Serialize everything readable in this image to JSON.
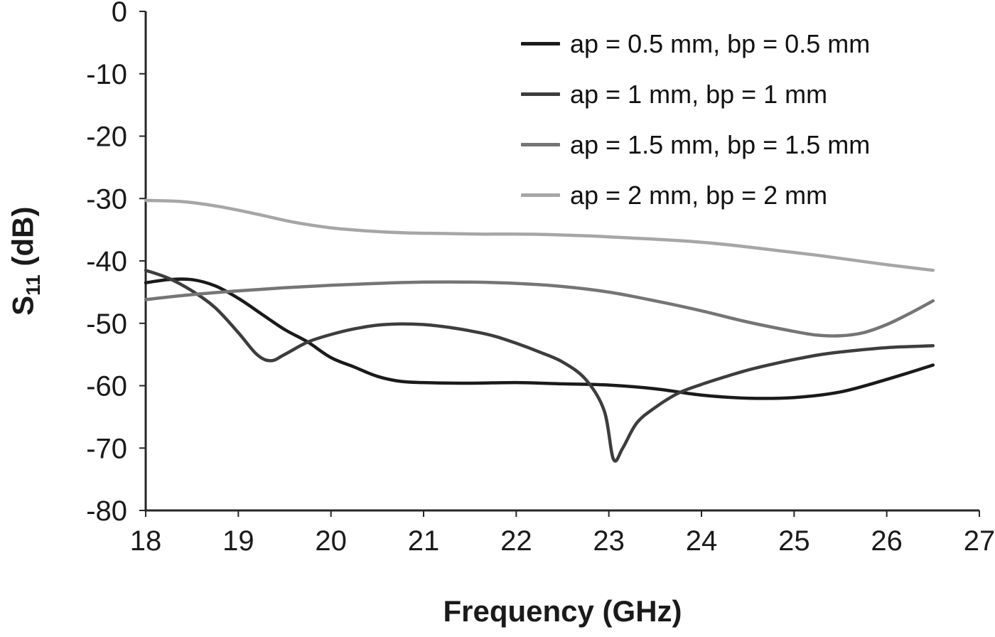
{
  "chart_data": {
    "type": "line",
    "title": "",
    "xlabel": "Frequency (GHz)",
    "ylabel": "S11 (dB)",
    "ylabel_parts": {
      "base": "S",
      "sub": "11",
      "unit": "(dB)"
    },
    "xlim": [
      18,
      27
    ],
    "ylim": [
      -80,
      0
    ],
    "x_ticks": [
      18,
      19,
      20,
      21,
      22,
      23,
      24,
      25,
      26,
      27
    ],
    "y_ticks": [
      0,
      -10,
      -20,
      -30,
      -40,
      -50,
      -60,
      -70,
      -80
    ],
    "grid": false,
    "legend_position": "top-right-inside",
    "axis_color": "#262626",
    "tick_label_color": "#1a1a1a",
    "series": [
      {
        "name": "ap = 0.5 mm, bp = 0.5 mm",
        "color": "#1a1a1a",
        "points": [
          [
            18.0,
            -43.5
          ],
          [
            18.25,
            -43.0
          ],
          [
            18.5,
            -43.0
          ],
          [
            18.75,
            -44.0
          ],
          [
            19.0,
            -46.0
          ],
          [
            19.25,
            -48.5
          ],
          [
            19.5,
            -51.0
          ],
          [
            19.75,
            -53.0
          ],
          [
            20.0,
            -55.5
          ],
          [
            20.25,
            -57.0
          ],
          [
            20.5,
            -58.5
          ],
          [
            20.75,
            -59.3
          ],
          [
            21.0,
            -59.5
          ],
          [
            21.5,
            -59.6
          ],
          [
            22.0,
            -59.5
          ],
          [
            22.5,
            -59.7
          ],
          [
            23.0,
            -59.9
          ],
          [
            23.5,
            -60.5
          ],
          [
            24.0,
            -61.5
          ],
          [
            24.5,
            -62.0
          ],
          [
            25.0,
            -61.9
          ],
          [
            25.5,
            -61.0
          ],
          [
            26.0,
            -59.0
          ],
          [
            26.5,
            -56.7
          ]
        ]
      },
      {
        "name": "ap = 1 mm, bp = 1 mm",
        "color": "#3d3d3d",
        "points": [
          [
            18.0,
            -41.5
          ],
          [
            18.25,
            -42.8
          ],
          [
            18.5,
            -44.8
          ],
          [
            18.75,
            -47.5
          ],
          [
            19.0,
            -51.5
          ],
          [
            19.2,
            -55.0
          ],
          [
            19.35,
            -56.0
          ],
          [
            19.5,
            -55.0
          ],
          [
            19.75,
            -53.0
          ],
          [
            20.0,
            -51.8
          ],
          [
            20.25,
            -50.9
          ],
          [
            20.5,
            -50.3
          ],
          [
            20.75,
            -50.1
          ],
          [
            21.0,
            -50.2
          ],
          [
            21.25,
            -50.6
          ],
          [
            21.5,
            -51.2
          ],
          [
            21.75,
            -52.0
          ],
          [
            22.0,
            -53.2
          ],
          [
            22.25,
            -54.6
          ],
          [
            22.5,
            -56.2
          ],
          [
            22.75,
            -59.0
          ],
          [
            22.95,
            -64.0
          ],
          [
            23.05,
            -71.8
          ],
          [
            23.15,
            -70.0
          ],
          [
            23.3,
            -66.0
          ],
          [
            23.5,
            -63.5
          ],
          [
            23.75,
            -61.2
          ],
          [
            24.0,
            -59.8
          ],
          [
            24.25,
            -58.6
          ],
          [
            24.5,
            -57.5
          ],
          [
            24.75,
            -56.6
          ],
          [
            25.0,
            -55.8
          ],
          [
            25.25,
            -55.1
          ],
          [
            25.5,
            -54.6
          ],
          [
            26.0,
            -53.9
          ],
          [
            26.5,
            -53.6
          ]
        ]
      },
      {
        "name": "ap = 1.5 mm, bp = 1.5 mm",
        "color": "#757575",
        "points": [
          [
            18.0,
            -46.2
          ],
          [
            18.5,
            -45.4
          ],
          [
            19.0,
            -44.8
          ],
          [
            19.5,
            -44.3
          ],
          [
            20.0,
            -43.9
          ],
          [
            20.5,
            -43.6
          ],
          [
            21.0,
            -43.4
          ],
          [
            21.5,
            -43.4
          ],
          [
            22.0,
            -43.6
          ],
          [
            22.5,
            -44.1
          ],
          [
            23.0,
            -45.0
          ],
          [
            23.5,
            -46.4
          ],
          [
            24.0,
            -48.0
          ],
          [
            24.5,
            -49.8
          ],
          [
            25.0,
            -51.3
          ],
          [
            25.25,
            -51.9
          ],
          [
            25.5,
            -52.0
          ],
          [
            25.75,
            -51.5
          ],
          [
            26.0,
            -50.2
          ],
          [
            26.25,
            -48.4
          ],
          [
            26.5,
            -46.4
          ]
        ]
      },
      {
        "name": "ap = 2 mm, bp = 2 mm",
        "color": "#a6a6a6",
        "points": [
          [
            18.0,
            -30.3
          ],
          [
            18.4,
            -30.5
          ],
          [
            18.8,
            -31.3
          ],
          [
            19.2,
            -32.5
          ],
          [
            19.6,
            -33.8
          ],
          [
            20.0,
            -34.7
          ],
          [
            20.4,
            -35.2
          ],
          [
            20.8,
            -35.5
          ],
          [
            21.2,
            -35.6
          ],
          [
            21.6,
            -35.7
          ],
          [
            22.0,
            -35.7
          ],
          [
            22.4,
            -35.8
          ],
          [
            22.8,
            -36.0
          ],
          [
            23.2,
            -36.3
          ],
          [
            23.6,
            -36.6
          ],
          [
            24.0,
            -37.0
          ],
          [
            24.4,
            -37.6
          ],
          [
            24.8,
            -38.3
          ],
          [
            25.2,
            -39.0
          ],
          [
            25.6,
            -39.8
          ],
          [
            26.0,
            -40.6
          ],
          [
            26.5,
            -41.5
          ]
        ]
      }
    ]
  }
}
